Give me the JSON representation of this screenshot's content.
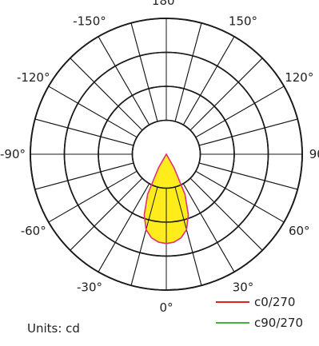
{
  "chart_data": {
    "type": "polar",
    "title": "",
    "radial_range": [
      0,
      4
    ],
    "angle_zero": "bottom",
    "angular_tick_labels": [
      {
        "angle": 180,
        "label": "180°"
      },
      {
        "angle": -150,
        "label": "-150°"
      },
      {
        "angle": 150,
        "label": "150°"
      },
      {
        "angle": -120,
        "label": "-120°"
      },
      {
        "angle": 120,
        "label": "120°"
      },
      {
        "angle": -90,
        "label": "-90°"
      },
      {
        "angle": 90,
        "label": "90°"
      },
      {
        "angle": -60,
        "label": "-60°"
      },
      {
        "angle": 60,
        "label": "60°"
      },
      {
        "angle": -30,
        "label": "-30°"
      },
      {
        "angle": 30,
        "label": "30°"
      },
      {
        "angle": 0,
        "label": "0°"
      }
    ],
    "spoke_step_deg": 15,
    "series": [
      {
        "name": "c0/270",
        "color": "#e0201b",
        "fill": "#ffec1c",
        "points": [
          {
            "angle": -38,
            "r": 0.0
          },
          {
            "angle": -30,
            "r": 0.45
          },
          {
            "angle": -25,
            "r": 1.3
          },
          {
            "angle": -20,
            "r": 1.9
          },
          {
            "angle": -15,
            "r": 2.3
          },
          {
            "angle": -10,
            "r": 2.5
          },
          {
            "angle": -5,
            "r": 2.6
          },
          {
            "angle": 0,
            "r": 2.63
          },
          {
            "angle": 5,
            "r": 2.6
          },
          {
            "angle": 10,
            "r": 2.5
          },
          {
            "angle": 15,
            "r": 2.3
          },
          {
            "angle": 20,
            "r": 1.9
          },
          {
            "angle": 25,
            "r": 1.3
          },
          {
            "angle": 30,
            "r": 0.45
          },
          {
            "angle": 38,
            "r": 0.0
          }
        ]
      },
      {
        "name": "c90/270",
        "color": "#3db53b",
        "fill": "none",
        "points": []
      }
    ]
  },
  "units_label": "Units: cd"
}
